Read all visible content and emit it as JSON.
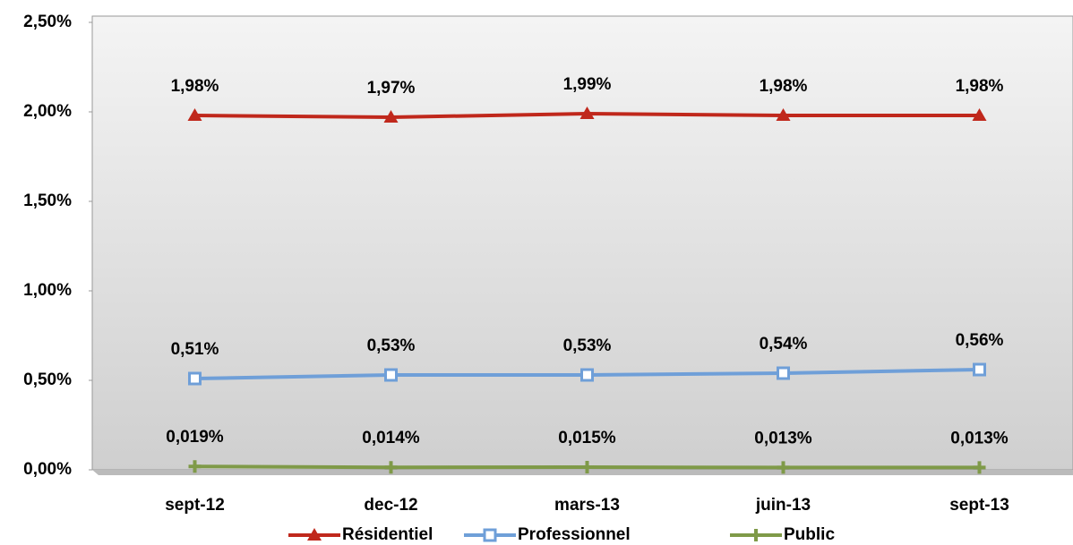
{
  "chart_data": {
    "type": "line",
    "categories": [
      "sept-12",
      "dec-12",
      "mars-13",
      "juin-13",
      "sept-13"
    ],
    "series": [
      {
        "name": "Résidentiel",
        "color": "#c0281c",
        "marker": "triangle",
        "values": [
          1.98,
          1.97,
          1.99,
          1.98,
          1.98
        ],
        "value_labels": [
          "1,98%",
          "1,97%",
          "1,99%",
          "1,98%",
          "1,98%"
        ]
      },
      {
        "name": "Professionnel",
        "color": "#6f9fd8",
        "marker": "square",
        "values": [
          0.51,
          0.53,
          0.53,
          0.54,
          0.56
        ],
        "value_labels": [
          "0,51%",
          "0,53%",
          "0,53%",
          "0,54%",
          "0,56%"
        ]
      },
      {
        "name": "Public",
        "color": "#7f9a48",
        "marker": "plus",
        "values": [
          0.019,
          0.014,
          0.015,
          0.013,
          0.013
        ],
        "value_labels": [
          "0,019%",
          "0,014%",
          "0,015%",
          "0,013%",
          "0,013%"
        ]
      }
    ],
    "ylim": [
      0,
      2.5
    ],
    "yticks": [
      {
        "value": 0,
        "label": "0,00%"
      },
      {
        "value": 0.5,
        "label": "0,50%"
      },
      {
        "value": 1,
        "label": "1,00%"
      },
      {
        "value": 1.5,
        "label": "1,50%"
      },
      {
        "value": 2,
        "label": "2,00%"
      },
      {
        "value": 2.5,
        "label": "2,50%"
      }
    ],
    "legend": "bottom"
  }
}
